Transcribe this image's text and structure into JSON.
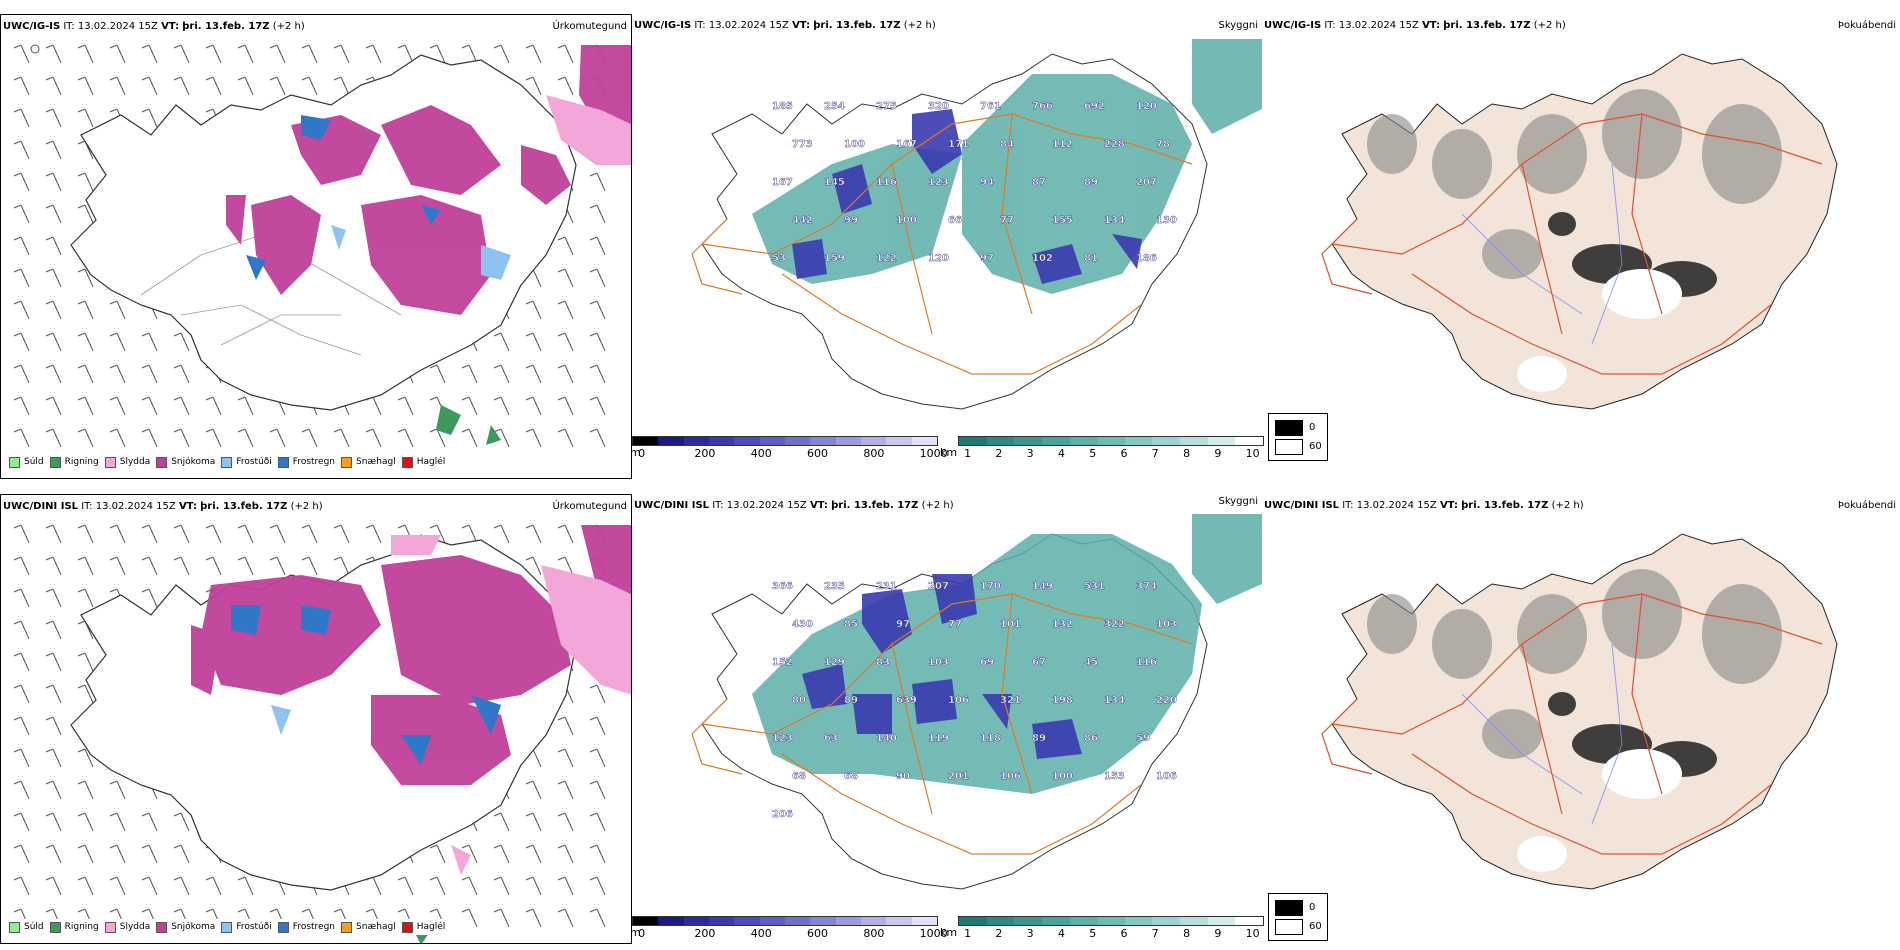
{
  "rows": [
    {
      "model": "UWC/IG-IS",
      "it_label": "IT:",
      "it_value": "13.02.2024 15Z",
      "vt_label": "VT:",
      "vt_value": "þri. 13.feb. 17Z",
      "lead": "(+2 h)"
    },
    {
      "model": "UWC/DINI ISL",
      "it_label": "IT:",
      "it_value": "13.02.2024 15Z",
      "vt_label": "VT:",
      "vt_value": "þri. 13.feb. 17Z",
      "lead": "(+2 h)"
    }
  ],
  "panel_names": {
    "precip_type": "Úrkomutegund",
    "visibility": "Skyggni",
    "fog": "Þokuábendi"
  },
  "precip_legend": [
    {
      "label": "Súld",
      "color": "#90ee90"
    },
    {
      "label": "Rigning",
      "color": "#3c9a5c"
    },
    {
      "label": "Slydda",
      "color": "#f2a7d8"
    },
    {
      "label": "Snjókoma",
      "color": "#c0409a"
    },
    {
      "label": "Frostúði",
      "color": "#8ec3f0"
    },
    {
      "label": "Frostregn",
      "color": "#2f78c8"
    },
    {
      "label": "Snæhagl",
      "color": "#f5a020"
    },
    {
      "label": "Haglél",
      "color": "#e01010"
    }
  ],
  "height_scale": {
    "unit": "m",
    "ticks": [
      "0",
      "200",
      "400",
      "600",
      "800",
      "1000"
    ],
    "colors": [
      "#000000",
      "#1a1a80",
      "#2b2b9e",
      "#3a3ab0",
      "#4b4bbd",
      "#5d5dc4",
      "#7070cc",
      "#8585d4",
      "#9a9add",
      "#b0b0e6",
      "#c8c8ef",
      "#e0e0f7"
    ]
  },
  "visibility_scale": {
    "unit": "km",
    "ticks": [
      "1",
      "2",
      "3",
      "4",
      "5",
      "6",
      "7",
      "8",
      "9",
      "10"
    ],
    "colors": [
      "#1f7a74",
      "#2b8a84",
      "#3a9690",
      "#4aa29c",
      "#5caea8",
      "#70bab4",
      "#86c6c1",
      "#9ed2ce",
      "#b8dedb",
      "#d4ebe9",
      "#ffffff"
    ]
  },
  "fog_key": [
    {
      "label": "0",
      "color": "#000000"
    },
    {
      "label": "60",
      "color": "#ffffff"
    }
  ],
  "vis_labels_top": [
    "185",
    "254",
    "275",
    "320",
    "761",
    "766",
    "692",
    "120",
    "773",
    "100",
    "167",
    "171",
    "84",
    "112",
    "228",
    "78",
    "167",
    "145",
    "116",
    "123",
    "94",
    "87",
    "89",
    "207",
    "442",
    "99",
    "100",
    "66",
    "77",
    "155",
    "134",
    "130",
    "53",
    "159",
    "122",
    "120",
    "97",
    "102",
    "81",
    "186"
  ],
  "vis_labels_bottom": [
    "366",
    "235",
    "231",
    "207",
    "170",
    "149",
    "531",
    "374",
    "430",
    "85",
    "97",
    "77",
    "101",
    "132",
    "322",
    "103",
    "152",
    "129",
    "83",
    "103",
    "69",
    "67",
    "45",
    "116",
    "80",
    "89",
    "639",
    "106",
    "321",
    "198",
    "134",
    "220",
    "123",
    "63",
    "140",
    "119",
    "118",
    "89",
    "86",
    "59",
    "68",
    "68",
    "90",
    "201",
    "106",
    "100",
    "153",
    "106",
    "206"
  ]
}
